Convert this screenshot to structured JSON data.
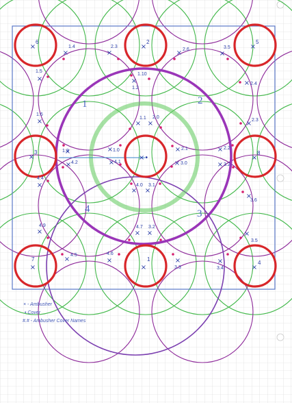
{
  "diagram": {
    "ambusher_labels": [
      "6",
      "2",
      "5",
      "3",
      "8",
      "7",
      "1",
      "4"
    ],
    "cover_labels": [
      "1.4",
      "2.3",
      "2.6",
      "3.5",
      "1.5",
      "1.10",
      "1.2",
      "2.4",
      "1.6",
      "1.1",
      "2.0",
      "2.3",
      "1.3",
      "1.0",
      "2.1",
      "2.2",
      "4.2",
      "4.1",
      "3.0",
      "3.2",
      "4.4",
      "4.0",
      "3.1",
      "3.6",
      "4.9",
      "4.7",
      "3.2",
      "3.5",
      "4.5",
      "4.6",
      "3.3",
      "3.4"
    ],
    "sectors": [
      "1",
      "2",
      "3",
      "4"
    ],
    "center_marker": "×•",
    "legend": {
      "ambusher": "× - Ambusher",
      "cover": "• Cover",
      "names": "#.# - Ambusher Cover Names"
    },
    "colors": {
      "ambusher_ring": "#d8262a",
      "green_range": "#42b84a",
      "purple_range": "#8e2a9a",
      "marker": "#2a3da8",
      "cover_dot": "#d6206f"
    }
  }
}
